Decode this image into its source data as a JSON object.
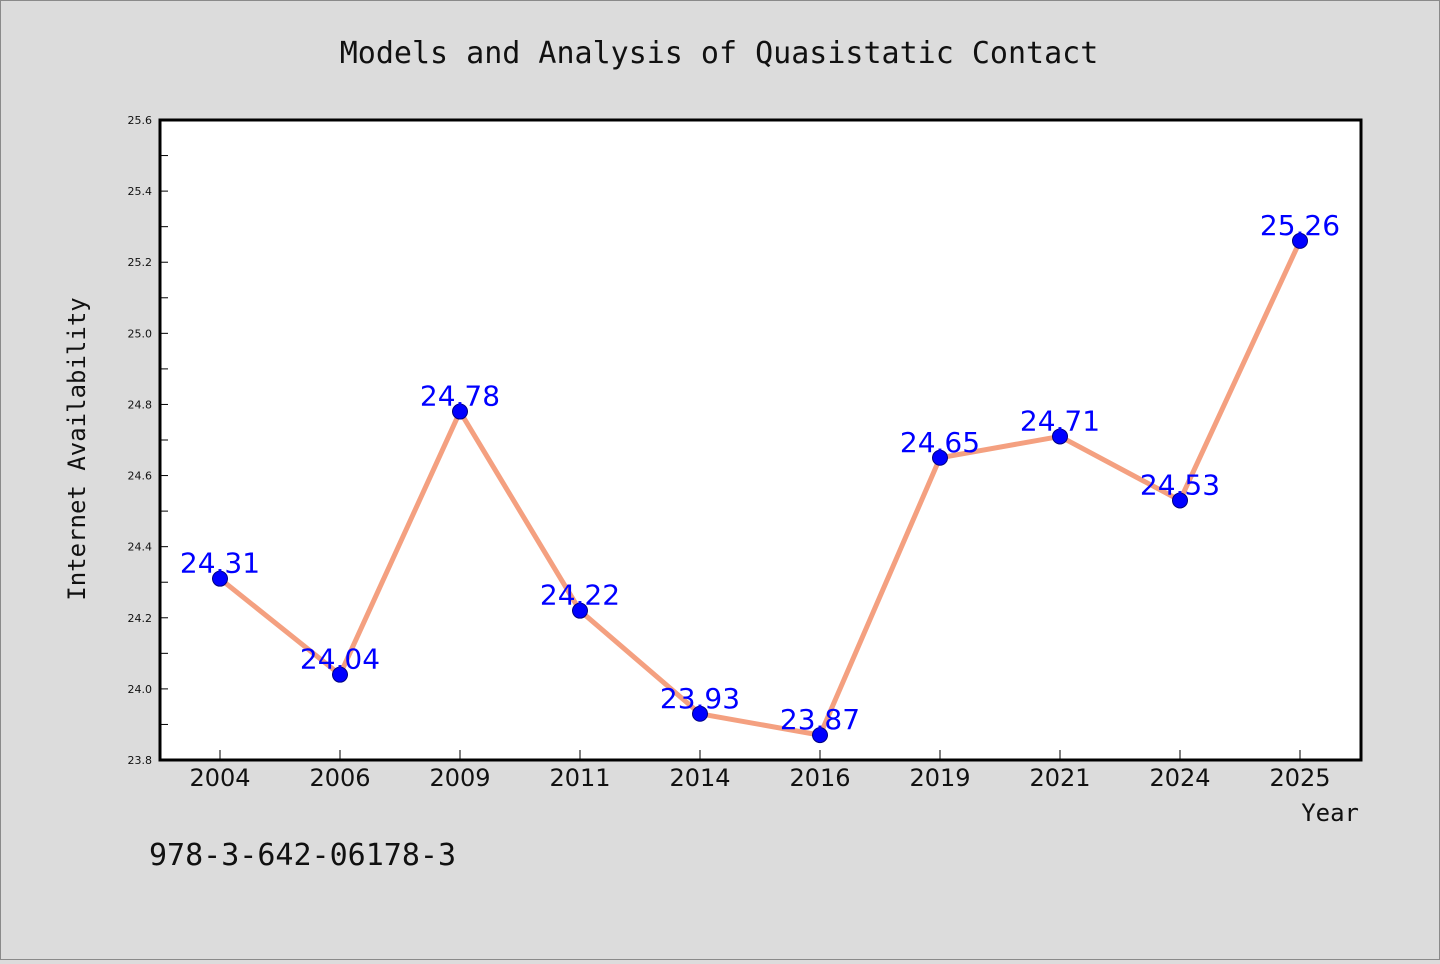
{
  "page": {
    "isbn_text": "978-3-642-06178-3"
  },
  "colors": {
    "background": "#dcdcdc",
    "plot_background": "#ffffff",
    "line": "#f4a080",
    "marker": "#0000ff",
    "marker_edge": "#000080",
    "data_label": "#0000ff"
  },
  "chart_data": {
    "type": "line",
    "title": "Models and Analysis of Quasistatic Contact",
    "xlabel": "Year",
    "ylabel": "Internet Availability",
    "categories": [
      "2004",
      "2006",
      "2009",
      "2011",
      "2014",
      "2016",
      "2019",
      "2021",
      "2024",
      "2025"
    ],
    "series": [
      {
        "values": [
          24.31,
          24.04,
          24.78,
          24.22,
          23.93,
          23.87,
          24.65,
          24.71,
          24.53,
          25.26
        ],
        "labels": [
          "24.31",
          "24.04",
          "24.78",
          "24.22",
          "23.93",
          "23.87",
          "24.65",
          "24.71",
          "24.53",
          "25.26"
        ]
      }
    ],
    "ylim": [
      23.8,
      25.6
    ],
    "yticks": [
      "23.8",
      "24.0",
      "24.2",
      "24.4",
      "24.6",
      "24.8",
      "25.0",
      "25.2",
      "25.4",
      "25.6"
    ],
    "grid": false,
    "legend": "none"
  }
}
